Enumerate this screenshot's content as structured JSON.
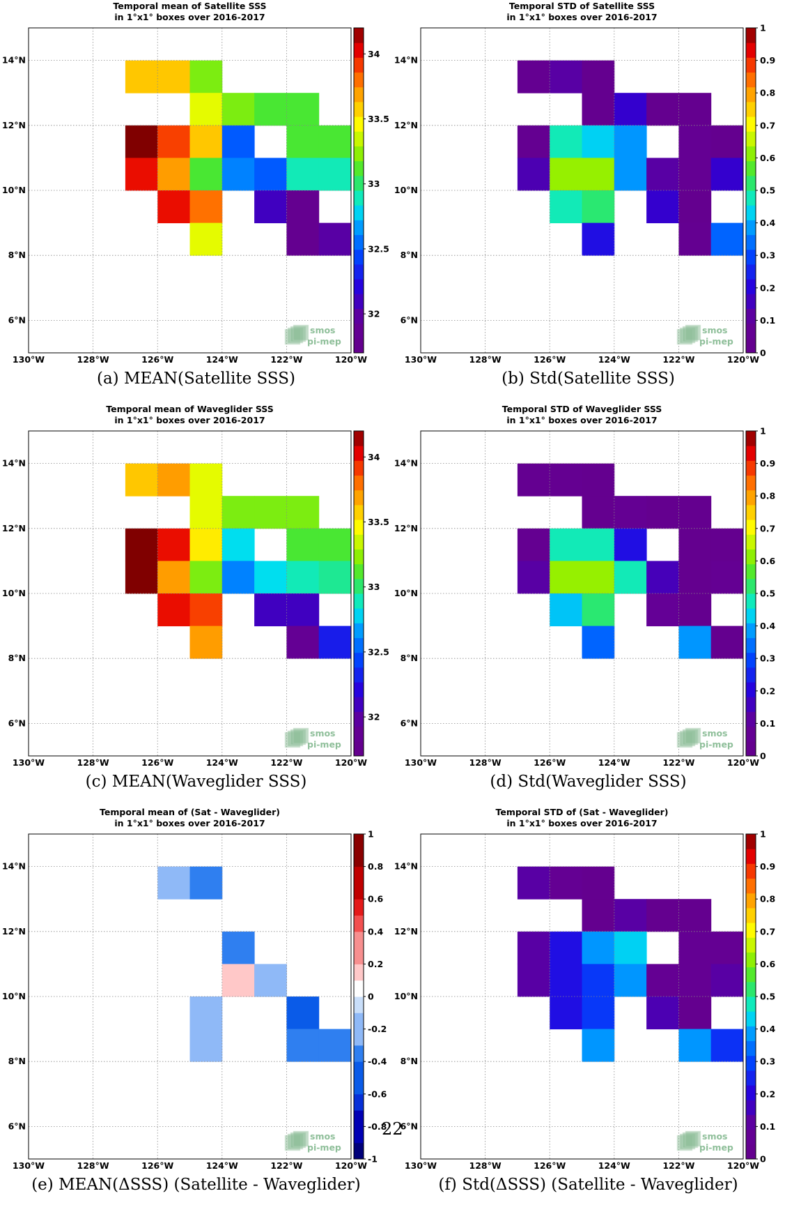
{
  "page_number": "22",
  "logo": {
    "line1": "smos",
    "line2": "pi-mep",
    "color": "#8fbf9a"
  },
  "axes": {
    "x_ticks": [
      "130°W",
      "128°W",
      "126°W",
      "124°W",
      "122°W",
      "120°W"
    ],
    "y_ticks": [
      "6°N",
      "8°N",
      "10°N",
      "12°N",
      "14°N"
    ],
    "xlim": [
      -130,
      -120
    ],
    "ylim": [
      5,
      15
    ]
  },
  "panels": [
    {
      "caption": "(a) MEAN(Satellite SSS)"
    },
    {
      "caption": "(b) Std(Satellite SSS)"
    },
    {
      "caption": "(c) MEAN(Waveglider SSS)"
    },
    {
      "caption": "(d) Std(Waveglider SSS)"
    },
    {
      "caption": "(e) MEAN(ΔSSS) (Satellite - Waveglider)"
    },
    {
      "caption": "(f) Std(ΔSSS) (Satellite - Waveglider)"
    }
  ],
  "chart_data": [
    {
      "type": "heatmap",
      "title": "Temporal mean of Satellite SSS",
      "subtitle": "in 1°x1° boxes over 2016-2017",
      "xlim": [
        -130,
        -120
      ],
      "ylim": [
        5,
        15
      ],
      "colorbar": {
        "cmap": "jet",
        "range": [
          31.7,
          34.2
        ],
        "ticks": [
          "32",
          "32.5",
          "33",
          "33.5",
          "34"
        ],
        "tick_values": [
          32,
          32.5,
          33,
          33.5,
          34
        ]
      },
      "cells": [
        {
          "lon": -127,
          "lat": 13,
          "value": 33.6
        },
        {
          "lon": -126,
          "lat": 13,
          "value": 33.6
        },
        {
          "lon": -125,
          "lat": 13,
          "value": 33.2
        },
        {
          "lon": -125,
          "lat": 12,
          "value": 33.4
        },
        {
          "lon": -124,
          "lat": 12,
          "value": 33.2
        },
        {
          "lon": -123,
          "lat": 12,
          "value": 33.1
        },
        {
          "lon": -122,
          "lat": 12,
          "value": 33.1
        },
        {
          "lon": -127,
          "lat": 11,
          "value": 34.2
        },
        {
          "lon": -126,
          "lat": 11,
          "value": 33.9
        },
        {
          "lon": -125,
          "lat": 11,
          "value": 33.6
        },
        {
          "lon": -124,
          "lat": 11,
          "value": 32.5
        },
        {
          "lon": -122,
          "lat": 11,
          "value": 33.1
        },
        {
          "lon": -121,
          "lat": 11,
          "value": 33.1
        },
        {
          "lon": -127,
          "lat": 10,
          "value": 34.0
        },
        {
          "lon": -126,
          "lat": 10,
          "value": 33.7
        },
        {
          "lon": -125,
          "lat": 10,
          "value": 33.1
        },
        {
          "lon": -124,
          "lat": 10,
          "value": 32.6
        },
        {
          "lon": -123,
          "lat": 10,
          "value": 32.5
        },
        {
          "lon": -122,
          "lat": 10,
          "value": 32.9
        },
        {
          "lon": -121,
          "lat": 10,
          "value": 32.9
        },
        {
          "lon": -126,
          "lat": 9,
          "value": 34.0
        },
        {
          "lon": -125,
          "lat": 9,
          "value": 33.8
        },
        {
          "lon": -123,
          "lat": 9,
          "value": 32.1
        },
        {
          "lon": -122,
          "lat": 9,
          "value": 31.8
        },
        {
          "lon": -125,
          "lat": 8,
          "value": 33.4
        },
        {
          "lon": -122,
          "lat": 8,
          "value": 31.8
        },
        {
          "lon": -121,
          "lat": 8,
          "value": 32.0
        }
      ]
    },
    {
      "type": "heatmap",
      "title": "Temporal STD of Satellite SSS",
      "subtitle": "in 1°x1° boxes over 2016-2017",
      "xlim": [
        -130,
        -120
      ],
      "ylim": [
        5,
        15
      ],
      "colorbar": {
        "cmap": "jet",
        "range": [
          0,
          1
        ],
        "ticks": [
          "0",
          "0.1",
          "0.2",
          "0.3",
          "0.4",
          "0.5",
          "0.6",
          "0.7",
          "0.8",
          "0.9",
          "1"
        ],
        "tick_values": [
          0,
          0.1,
          0.2,
          0.3,
          0.4,
          0.5,
          0.6,
          0.7,
          0.8,
          0.9,
          1
        ]
      },
      "cells": [
        {
          "lon": -127,
          "lat": 13,
          "value": 0.05
        },
        {
          "lon": -126,
          "lat": 13,
          "value": 0.12
        },
        {
          "lon": -125,
          "lat": 13,
          "value": 0.03
        },
        {
          "lon": -125,
          "lat": 12,
          "value": 0.03
        },
        {
          "lon": -124,
          "lat": 12,
          "value": 0.18
        },
        {
          "lon": -123,
          "lat": 12,
          "value": 0.03
        },
        {
          "lon": -122,
          "lat": 12,
          "value": 0.03
        },
        {
          "lon": -127,
          "lat": 11,
          "value": 0.05
        },
        {
          "lon": -126,
          "lat": 11,
          "value": 0.48
        },
        {
          "lon": -125,
          "lat": 11,
          "value": 0.43
        },
        {
          "lon": -124,
          "lat": 11,
          "value": 0.38
        },
        {
          "lon": -122,
          "lat": 11,
          "value": 0.07
        },
        {
          "lon": -121,
          "lat": 11,
          "value": 0.03
        },
        {
          "lon": -127,
          "lat": 10,
          "value": 0.14
        },
        {
          "lon": -126,
          "lat": 10,
          "value": 0.62
        },
        {
          "lon": -125,
          "lat": 10,
          "value": 0.62
        },
        {
          "lon": -124,
          "lat": 10,
          "value": 0.38
        },
        {
          "lon": -123,
          "lat": 10,
          "value": 0.12
        },
        {
          "lon": -122,
          "lat": 10,
          "value": 0.07
        },
        {
          "lon": -121,
          "lat": 10,
          "value": 0.18
        },
        {
          "lon": -126,
          "lat": 9,
          "value": 0.48
        },
        {
          "lon": -125,
          "lat": 9,
          "value": 0.52
        },
        {
          "lon": -123,
          "lat": 9,
          "value": 0.18
        },
        {
          "lon": -122,
          "lat": 9,
          "value": 0.03
        },
        {
          "lon": -125,
          "lat": 8,
          "value": 0.22
        },
        {
          "lon": -122,
          "lat": 8,
          "value": 0.05
        },
        {
          "lon": -121,
          "lat": 8,
          "value": 0.33
        }
      ]
    },
    {
      "type": "heatmap",
      "title": "Temporal mean of Waveglider SSS",
      "subtitle": "in 1°x1° boxes over 2016-2017",
      "xlim": [
        -130,
        -120
      ],
      "ylim": [
        5,
        15
      ],
      "colorbar": {
        "cmap": "jet",
        "range": [
          31.7,
          34.2
        ],
        "ticks": [
          "32",
          "32.5",
          "33",
          "33.5",
          "34"
        ],
        "tick_values": [
          32,
          32.5,
          33,
          33.5,
          34
        ]
      },
      "cells": [
        {
          "lon": -127,
          "lat": 13,
          "value": 33.6
        },
        {
          "lon": -126,
          "lat": 13,
          "value": 33.7
        },
        {
          "lon": -125,
          "lat": 13,
          "value": 33.4
        },
        {
          "lon": -125,
          "lat": 12,
          "value": 33.4
        },
        {
          "lon": -124,
          "lat": 12,
          "value": 33.2
        },
        {
          "lon": -123,
          "lat": 12,
          "value": 33.2
        },
        {
          "lon": -122,
          "lat": 12,
          "value": 33.2
        },
        {
          "lon": -127,
          "lat": 11,
          "value": 34.2
        },
        {
          "lon": -126,
          "lat": 11,
          "value": 34.0
        },
        {
          "lon": -125,
          "lat": 11,
          "value": 33.5
        },
        {
          "lon": -124,
          "lat": 11,
          "value": 32.8
        },
        {
          "lon": -122,
          "lat": 11,
          "value": 33.1
        },
        {
          "lon": -121,
          "lat": 11,
          "value": 33.1
        },
        {
          "lon": -127,
          "lat": 10,
          "value": 34.2
        },
        {
          "lon": -126,
          "lat": 10,
          "value": 33.7
        },
        {
          "lon": -125,
          "lat": 10,
          "value": 33.2
        },
        {
          "lon": -124,
          "lat": 10,
          "value": 32.6
        },
        {
          "lon": -123,
          "lat": 10,
          "value": 32.8
        },
        {
          "lon": -122,
          "lat": 10,
          "value": 32.9
        },
        {
          "lon": -121,
          "lat": 10,
          "value": 32.95
        },
        {
          "lon": -126,
          "lat": 9,
          "value": 34.0
        },
        {
          "lon": -125,
          "lat": 9,
          "value": 33.9
        },
        {
          "lon": -123,
          "lat": 9,
          "value": 32.1
        },
        {
          "lon": -122,
          "lat": 9,
          "value": 32.1
        },
        {
          "lon": -125,
          "lat": 8,
          "value": 33.7
        },
        {
          "lon": -122,
          "lat": 8,
          "value": 31.9
        },
        {
          "lon": -121,
          "lat": 8,
          "value": 32.3
        }
      ]
    },
    {
      "type": "heatmap",
      "title": "Temporal STD of Waveglider SSS",
      "subtitle": "in 1°x1° boxes over 2016-2017",
      "xlim": [
        -130,
        -120
      ],
      "ylim": [
        5,
        15
      ],
      "colorbar": {
        "cmap": "jet",
        "range": [
          0,
          1
        ],
        "ticks": [
          "0",
          "0.1",
          "0.2",
          "0.3",
          "0.4",
          "0.5",
          "0.6",
          "0.7",
          "0.8",
          "0.9",
          "1"
        ],
        "tick_values": [
          0,
          0.1,
          0.2,
          0.3,
          0.4,
          0.5,
          0.6,
          0.7,
          0.8,
          0.9,
          1
        ]
      },
      "cells": [
        {
          "lon": -127,
          "lat": 13,
          "value": 0.05
        },
        {
          "lon": -126,
          "lat": 13,
          "value": 0.05
        },
        {
          "lon": -125,
          "lat": 13,
          "value": 0.03
        },
        {
          "lon": -125,
          "lat": 12,
          "value": 0.03
        },
        {
          "lon": -124,
          "lat": 12,
          "value": 0.07
        },
        {
          "lon": -123,
          "lat": 12,
          "value": 0.03
        },
        {
          "lon": -122,
          "lat": 12,
          "value": 0.03
        },
        {
          "lon": -127,
          "lat": 11,
          "value": 0.05
        },
        {
          "lon": -126,
          "lat": 11,
          "value": 0.48
        },
        {
          "lon": -125,
          "lat": 11,
          "value": 0.48
        },
        {
          "lon": -124,
          "lat": 11,
          "value": 0.22
        },
        {
          "lon": -122,
          "lat": 11,
          "value": 0.03
        },
        {
          "lon": -121,
          "lat": 11,
          "value": 0.03
        },
        {
          "lon": -127,
          "lat": 10,
          "value": 0.12
        },
        {
          "lon": -126,
          "lat": 10,
          "value": 0.62
        },
        {
          "lon": -125,
          "lat": 10,
          "value": 0.62
        },
        {
          "lon": -124,
          "lat": 10,
          "value": 0.48
        },
        {
          "lon": -123,
          "lat": 10,
          "value": 0.15
        },
        {
          "lon": -122,
          "lat": 10,
          "value": 0.03
        },
        {
          "lon": -121,
          "lat": 10,
          "value": 0.07
        },
        {
          "lon": -126,
          "lat": 9,
          "value": 0.42
        },
        {
          "lon": -125,
          "lat": 9,
          "value": 0.52
        },
        {
          "lon": -123,
          "lat": 9,
          "value": 0.1
        },
        {
          "lon": -122,
          "lat": 9,
          "value": 0.03
        },
        {
          "lon": -125,
          "lat": 8,
          "value": 0.33
        },
        {
          "lon": -122,
          "lat": 8,
          "value": 0.38
        },
        {
          "lon": -121,
          "lat": 8,
          "value": 0.03
        }
      ]
    },
    {
      "type": "heatmap",
      "title": "Temporal mean of (Sat - Waveglider)",
      "subtitle": "in 1°x1° boxes over 2016-2017",
      "xlim": [
        -130,
        -120
      ],
      "ylim": [
        5,
        15
      ],
      "colorbar": {
        "cmap": "diverging",
        "range": [
          -1,
          1
        ],
        "ticks": [
          "-1",
          "-0.8",
          "-0.6",
          "-0.4",
          "-0.2",
          "0",
          "0.2",
          "0.4",
          "0.6",
          "0.8",
          "1"
        ],
        "tick_values": [
          -1,
          -0.8,
          -0.6,
          -0.4,
          -0.2,
          0,
          0.2,
          0.4,
          0.6,
          0.8,
          1
        ]
      },
      "cells": [
        {
          "lon": -126,
          "lat": 13,
          "value": -0.15
        },
        {
          "lon": -125,
          "lat": 13,
          "value": -0.3
        },
        {
          "lon": -124,
          "lat": 11,
          "value": -0.3
        },
        {
          "lon": -124,
          "lat": 10,
          "value": 0.15
        },
        {
          "lon": -123,
          "lat": 10,
          "value": -0.15
        },
        {
          "lon": -125,
          "lat": 9,
          "value": -0.15
        },
        {
          "lon": -122,
          "lat": 9,
          "value": -0.5
        },
        {
          "lon": -125,
          "lat": 8,
          "value": -0.15
        },
        {
          "lon": -122,
          "lat": 8,
          "value": -0.42
        },
        {
          "lon": -121,
          "lat": 8,
          "value": -0.3
        }
      ]
    },
    {
      "type": "heatmap",
      "title": "Temporal STD of (Sat - Waveglider)",
      "subtitle": "in 1°x1° boxes over 2016-2017",
      "xlim": [
        -130,
        -120
      ],
      "ylim": [
        5,
        15
      ],
      "colorbar": {
        "cmap": "jet",
        "range": [
          0,
          1
        ],
        "ticks": [
          "0",
          "0.1",
          "0.2",
          "0.3",
          "0.4",
          "0.5",
          "0.6",
          "0.7",
          "0.8",
          "0.9",
          "1"
        ],
        "tick_values": [
          0,
          0.1,
          0.2,
          0.3,
          0.4,
          0.5,
          0.6,
          0.7,
          0.8,
          0.9,
          1
        ]
      },
      "cells": [
        {
          "lon": -127,
          "lat": 13,
          "value": 0.12
        },
        {
          "lon": -126,
          "lat": 13,
          "value": 0.07
        },
        {
          "lon": -125,
          "lat": 13,
          "value": 0.03
        },
        {
          "lon": -125,
          "lat": 12,
          "value": 0.03
        },
        {
          "lon": -124,
          "lat": 12,
          "value": 0.12
        },
        {
          "lon": -123,
          "lat": 12,
          "value": 0.03
        },
        {
          "lon": -122,
          "lat": 12,
          "value": 0.03
        },
        {
          "lon": -127,
          "lat": 11,
          "value": 0.12
        },
        {
          "lon": -126,
          "lat": 11,
          "value": 0.22
        },
        {
          "lon": -125,
          "lat": 11,
          "value": 0.38
        },
        {
          "lon": -124,
          "lat": 11,
          "value": 0.43
        },
        {
          "lon": -122,
          "lat": 11,
          "value": 0.07
        },
        {
          "lon": -121,
          "lat": 11,
          "value": 0.07
        },
        {
          "lon": -127,
          "lat": 10,
          "value": 0.12
        },
        {
          "lon": -126,
          "lat": 10,
          "value": 0.22
        },
        {
          "lon": -125,
          "lat": 10,
          "value": 0.28
        },
        {
          "lon": -124,
          "lat": 10,
          "value": 0.38
        },
        {
          "lon": -123,
          "lat": 10,
          "value": 0.07
        },
        {
          "lon": -122,
          "lat": 10,
          "value": 0.07
        },
        {
          "lon": -121,
          "lat": 10,
          "value": 0.12
        },
        {
          "lon": -126,
          "lat": 9,
          "value": 0.22
        },
        {
          "lon": -125,
          "lat": 9,
          "value": 0.28
        },
        {
          "lon": -123,
          "lat": 9,
          "value": 0.14
        },
        {
          "lon": -122,
          "lat": 9,
          "value": 0.03
        },
        {
          "lon": -125,
          "lat": 8,
          "value": 0.38
        },
        {
          "lon": -122,
          "lat": 8,
          "value": 0.38
        },
        {
          "lon": -121,
          "lat": 8,
          "value": 0.27
        }
      ]
    }
  ]
}
